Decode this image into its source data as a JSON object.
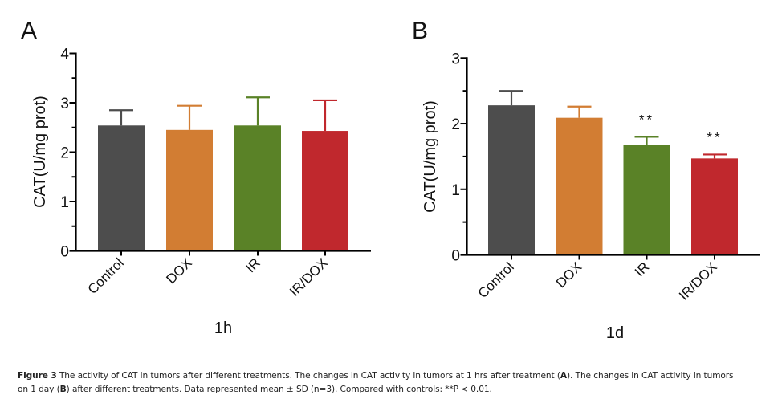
{
  "chart_data": [
    {
      "type": "bar",
      "panel_label": "A",
      "title": "",
      "xlabel": "1h",
      "ylabel": "CAT(U/mg prot)",
      "categories": [
        "Control",
        "DOX",
        "IR",
        "IR/DOX"
      ],
      "values": [
        2.54,
        2.45,
        2.54,
        2.43
      ],
      "error_sd": [
        0.31,
        0.49,
        0.57,
        0.62
      ],
      "colors": [
        "#4d4d4d",
        "#d27d33",
        "#5a8227",
        "#c0282d"
      ],
      "annotations": [
        "",
        "",
        "",
        ""
      ],
      "ylim": [
        0,
        4
      ],
      "yticks": [
        0,
        1,
        2,
        3,
        4
      ],
      "yminor_step": 0.5,
      "grid": false,
      "legend": "none"
    },
    {
      "type": "bar",
      "panel_label": "B",
      "title": "",
      "xlabel": "1d",
      "ylabel": "CAT(U/mg prot)",
      "categories": [
        "Control",
        "DOX",
        "IR",
        "IR/DOX"
      ],
      "values": [
        2.28,
        2.09,
        1.68,
        1.47
      ],
      "error_sd": [
        0.22,
        0.17,
        0.12,
        0.06
      ],
      "colors": [
        "#4d4d4d",
        "#d27d33",
        "#5a8227",
        "#c0282d"
      ],
      "annotations": [
        "",
        "",
        "**",
        "**"
      ],
      "ylim": [
        0,
        3
      ],
      "yticks": [
        0,
        1,
        2,
        3
      ],
      "yminor_step": 0.5,
      "grid": false,
      "legend": "none"
    }
  ],
  "caption": {
    "figure_label": "Figure 3",
    "line1_text": " The activity of CAT in tumors after different treatments. The changes in CAT activity in tumors at 1 hrs after treatment (",
    "line1_bold": "A",
    "line1_tail": "). The changes in CAT activity in tumors",
    "line2_head": "on 1 day (",
    "line2_bold": "B",
    "line2_text": ") after different treatments. Data represented mean ± SD (n=3). Compared with controls: **P < 0.01."
  }
}
